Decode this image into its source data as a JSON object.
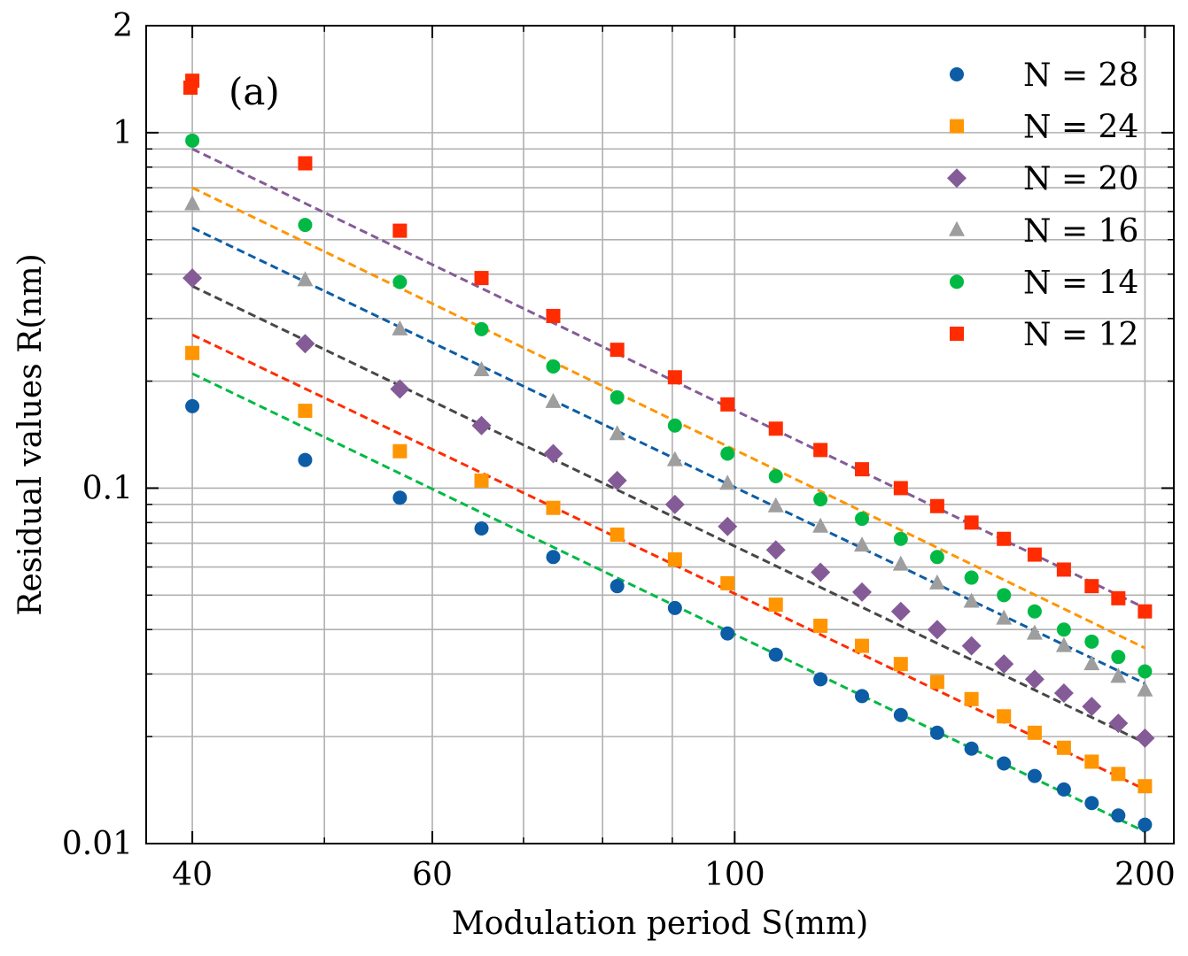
{
  "chart_data": {
    "type": "scatter",
    "panel_label": "(a)",
    "xlabel": "Modulation period S(mm)",
    "ylabel": "Residual values R(nm)",
    "xscale": "log",
    "yscale": "log",
    "xlim": [
      37,
      210
    ],
    "ylim": [
      0.01,
      2
    ],
    "xticks": [
      {
        "value": 40,
        "label": "40"
      },
      {
        "value": 60,
        "label": "60"
      },
      {
        "value": 100,
        "label": "100"
      },
      {
        "value": 200,
        "label": "200"
      }
    ],
    "yticks": [
      {
        "value": 0.01,
        "label": "0.01"
      },
      {
        "value": 0.1,
        "label": "0.1"
      },
      {
        "value": 1,
        "label": "1"
      },
      {
        "value": 2,
        "label": "2"
      }
    ],
    "grid": true,
    "legend_position": "top-right",
    "x": [
      40,
      48.4,
      56.8,
      65.2,
      73.6,
      82,
      90.4,
      98.8,
      107.2,
      115.6,
      124,
      132.4,
      140.8,
      149.2,
      157.6,
      166,
      174.4,
      182.8,
      191.2,
      200
    ],
    "series": [
      {
        "name": "N = 28",
        "color": "#0c5da5",
        "marker": "circle",
        "values": [
          0.17,
          0.12,
          0.094,
          0.077,
          0.064,
          0.053,
          0.046,
          0.039,
          0.034,
          0.029,
          0.026,
          0.023,
          0.0205,
          0.0185,
          0.0168,
          0.0155,
          0.0142,
          0.013,
          0.012,
          0.0113
        ],
        "fit": [
          0.21,
          0.0108
        ]
      },
      {
        "name": "N = 24",
        "color": "#ff9500",
        "marker": "square",
        "values": [
          0.24,
          0.165,
          0.127,
          0.105,
          0.088,
          0.074,
          0.063,
          0.054,
          0.047,
          0.041,
          0.036,
          0.032,
          0.0285,
          0.0255,
          0.0228,
          0.0205,
          0.0186,
          0.017,
          0.0157,
          0.0145
        ],
        "fit": [
          0.27,
          0.0142
        ]
      },
      {
        "name": "N = 20",
        "color": "#845b97",
        "marker": "diamond",
        "values": [
          0.39,
          0.255,
          0.19,
          0.15,
          0.125,
          0.105,
          0.09,
          0.078,
          0.067,
          0.058,
          0.051,
          0.045,
          0.04,
          0.036,
          0.032,
          0.029,
          0.0265,
          0.0243,
          0.0218,
          0.0198
        ],
        "fit": [
          0.37,
          0.0192
        ]
      },
      {
        "name": "N = 16",
        "color": "#9e9e9e",
        "marker": "triangle",
        "values": [
          0.63,
          0.385,
          0.28,
          0.215,
          0.175,
          0.142,
          0.12,
          0.103,
          0.089,
          0.078,
          0.069,
          0.061,
          0.054,
          0.048,
          0.043,
          0.039,
          0.036,
          0.032,
          0.0295,
          0.027
        ],
        "fit": [
          0.54,
          0.0282
        ]
      },
      {
        "name": "N = 14",
        "color": "#00b945",
        "marker": "circle",
        "values": [
          0.95,
          0.55,
          0.38,
          0.28,
          0.22,
          0.18,
          0.15,
          0.125,
          0.108,
          0.093,
          0.082,
          0.072,
          0.064,
          0.056,
          0.05,
          0.045,
          0.04,
          0.037,
          0.0335,
          0.0305
        ],
        "fit": [
          0.7,
          0.0355
        ]
      },
      {
        "name": "N = 12",
        "color": "#ff2c00",
        "marker": "square",
        "values": [
          1.4,
          0.82,
          0.53,
          0.39,
          0.305,
          0.245,
          0.205,
          0.172,
          0.147,
          0.128,
          0.113,
          0.1,
          0.089,
          0.08,
          0.072,
          0.065,
          0.059,
          0.053,
          0.049,
          0.045
        ],
        "fit": [
          0.9,
          0.046
        ]
      }
    ],
    "fit_lines": [
      {
        "color": "#845b97",
        "from": 0.9,
        "to": 0.046
      },
      {
        "color": "#ff9500",
        "from": 0.7,
        "to": 0.0355
      },
      {
        "color": "#0c5da5",
        "from": 0.54,
        "to": 0.0282
      },
      {
        "color": "#474747",
        "from": 0.37,
        "to": 0.0192
      },
      {
        "color": "#ff2c00",
        "from": 0.27,
        "to": 0.0142
      },
      {
        "color": "#00b945",
        "from": 0.21,
        "to": 0.0108
      }
    ]
  }
}
